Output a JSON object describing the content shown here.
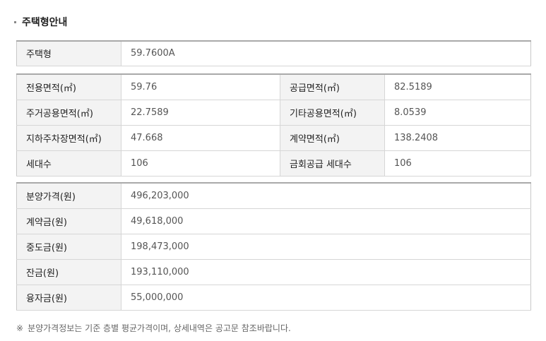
{
  "section": {
    "title": "주택형안내"
  },
  "housing_type": {
    "label": "주택형",
    "value": "59.7600A"
  },
  "area": {
    "rows": [
      {
        "label_left": "전용면적(㎡)",
        "value_left": "59.76",
        "label_right": "공급면적(㎡)",
        "value_right": "82.5189"
      },
      {
        "label_left": "주거공용면적(㎡)",
        "value_left": "22.7589",
        "label_right": "기타공용면적(㎡)",
        "value_right": "8.0539"
      },
      {
        "label_left": "지하주차장면적(㎡)",
        "value_left": "47.668",
        "label_right": "계약면적(㎡)",
        "value_right": "138.2408"
      },
      {
        "label_left": "세대수",
        "value_left": "106",
        "label_right": "금회공급 세대수",
        "value_right": "106"
      }
    ]
  },
  "price": {
    "rows": [
      {
        "label": "분양가격(원)",
        "value": "496,203,000"
      },
      {
        "label": "계약금(원)",
        "value": "49,618,000"
      },
      {
        "label": "중도금(원)",
        "value": "198,473,000"
      },
      {
        "label": "잔금(원)",
        "value": "193,110,000"
      },
      {
        "label": "융자금(원)",
        "value": "55,000,000"
      }
    ]
  },
  "note": {
    "mark": "※",
    "text": "분양가격정보는 기준 층별 평균가격이며, 상세내역은 공고문 참조바랍니다."
  }
}
